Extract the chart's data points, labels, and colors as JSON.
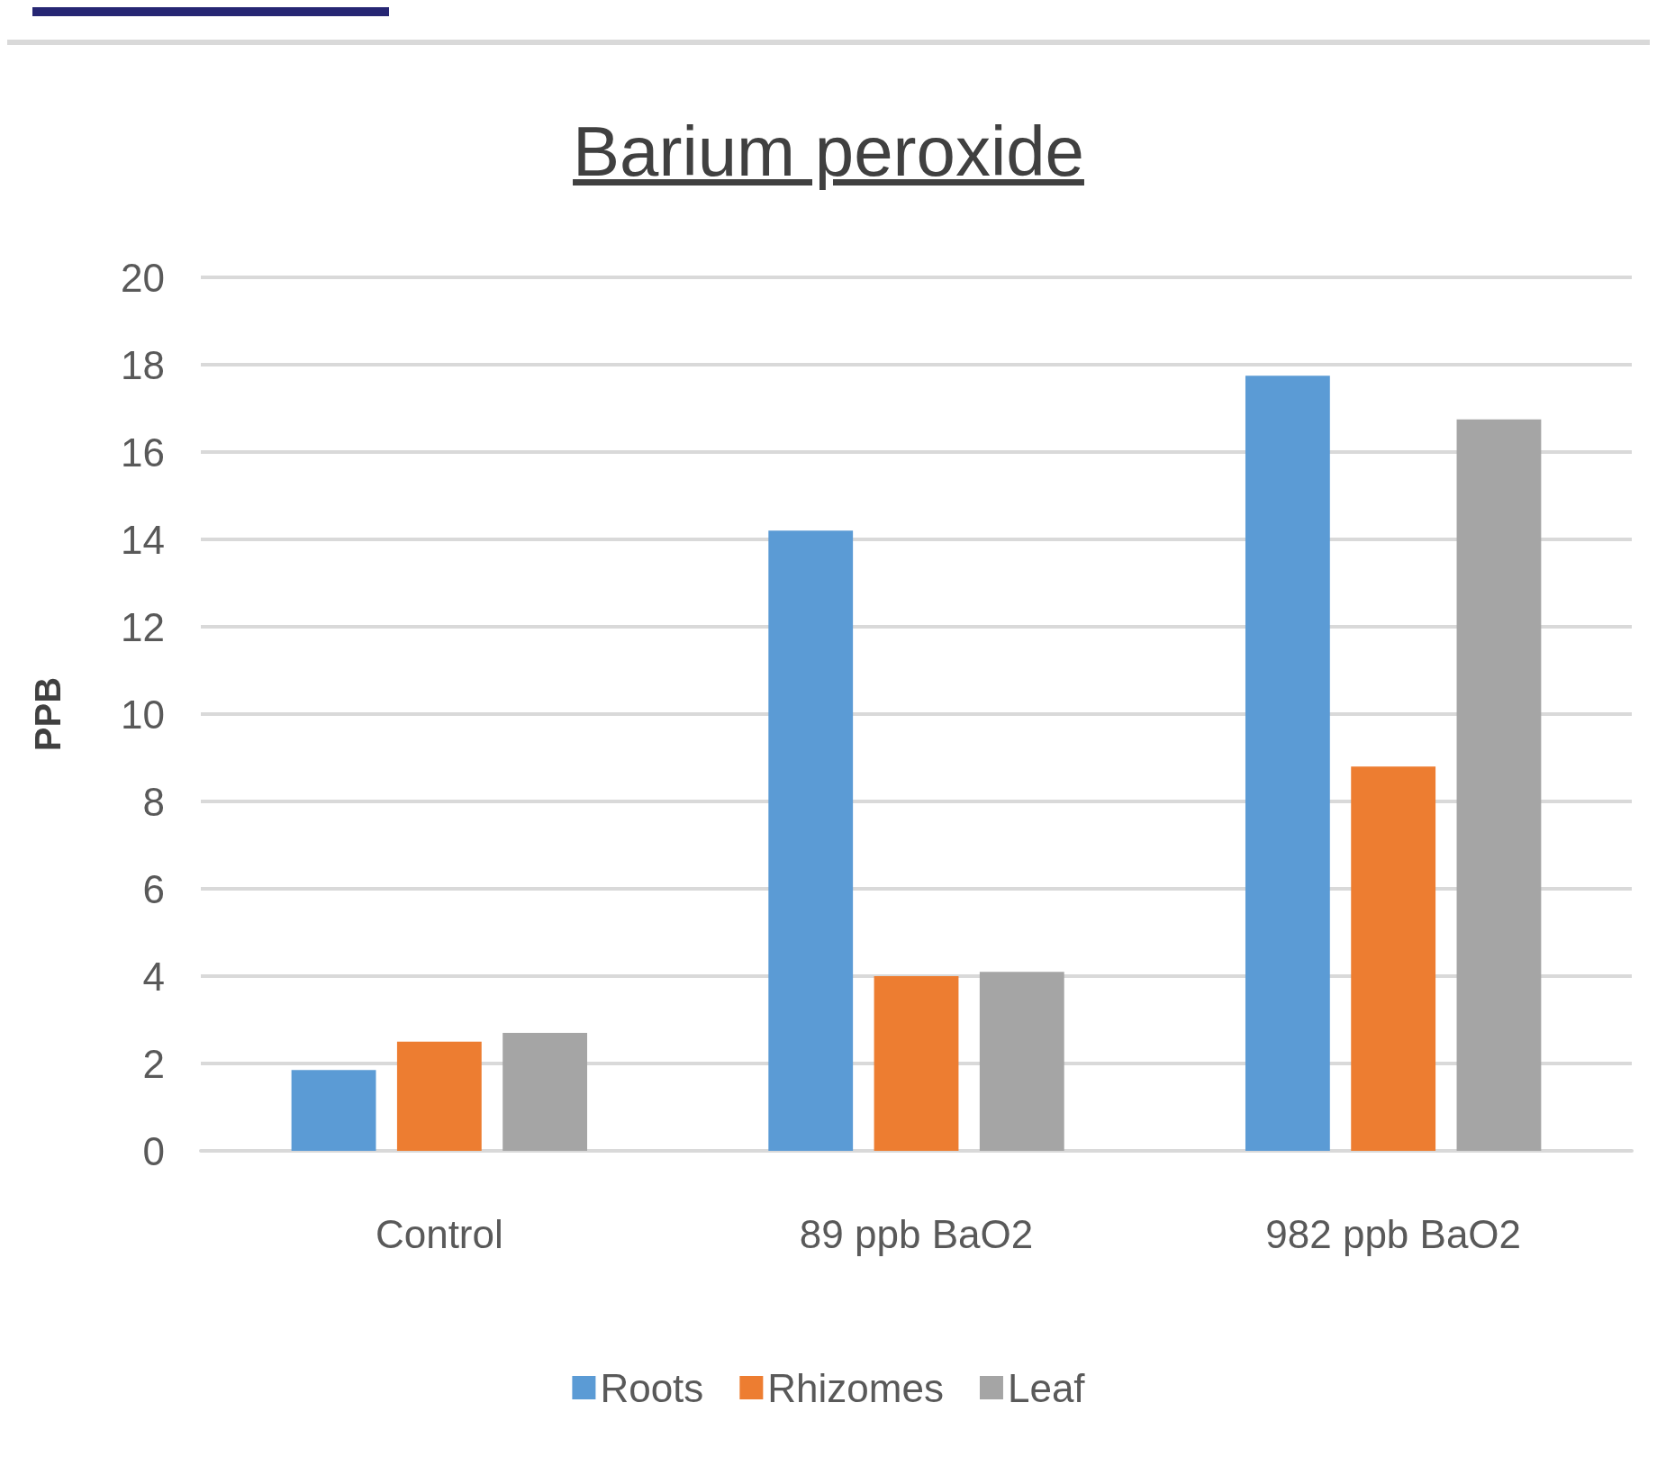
{
  "chart_data": {
    "type": "bar",
    "title": "Barium peroxide",
    "ylabel": "PPB",
    "categories": [
      "Control",
      "89 ppb BaO2",
      "982 ppb BaO2"
    ],
    "series": [
      {
        "name": "Roots",
        "color": "#5b9bd5",
        "values": [
          1.85,
          14.2,
          17.75
        ]
      },
      {
        "name": "Rhizomes",
        "color": "#ed7d31",
        "values": [
          2.5,
          4.0,
          8.8
        ]
      },
      {
        "name": "Leaf",
        "color": "#a5a5a5",
        "values": [
          2.7,
          4.1,
          16.75
        ]
      }
    ],
    "ylim": [
      0,
      20
    ],
    "yticks": [
      0,
      2,
      4,
      6,
      8,
      10,
      12,
      14,
      16,
      18,
      20
    ],
    "grid": "y",
    "legend": "bottom"
  }
}
